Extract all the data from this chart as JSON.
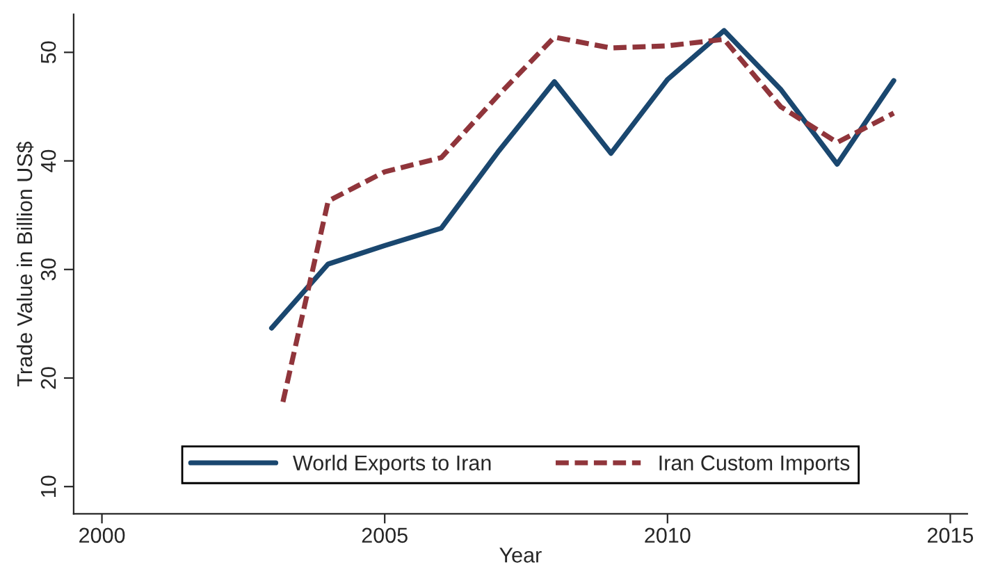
{
  "chart_data": {
    "type": "line",
    "xlabel": "Year",
    "ylabel": "Trade Value in Billion US$",
    "x": [
      2003,
      2004,
      2005,
      2006,
      2007,
      2008,
      2009,
      2010,
      2011,
      2012,
      2013,
      2014
    ],
    "series": [
      {
        "name": "World Exports to Iran",
        "color": "#1a476f",
        "line_style": "solid",
        "values": [
          24.6,
          30.5,
          32.2,
          33.8,
          40.8,
          47.3,
          40.7,
          47.5,
          52.0,
          46.6,
          39.7,
          47.4
        ]
      },
      {
        "name": "Iran Custom Imports",
        "color": "#90353b",
        "line_style": "dashed",
        "x": [
          2003.2,
          2004,
          2005,
          2006,
          2007,
          2008,
          2009,
          2010,
          2011,
          2012,
          2013,
          2014
        ],
        "values": [
          17.8,
          36.3,
          39.0,
          40.3,
          46.0,
          51.4,
          50.4,
          50.6,
          51.2,
          45.0,
          41.7,
          44.4
        ]
      }
    ],
    "xlim": [
      1999.5,
      2015.3
    ],
    "ylim": [
      7.5,
      53.5
    ],
    "xticks": [
      2000,
      2005,
      2010,
      2015
    ],
    "yticks": [
      10,
      20,
      30,
      40,
      50
    ],
    "grid": false,
    "legend": "bottom",
    "marker": "none"
  }
}
